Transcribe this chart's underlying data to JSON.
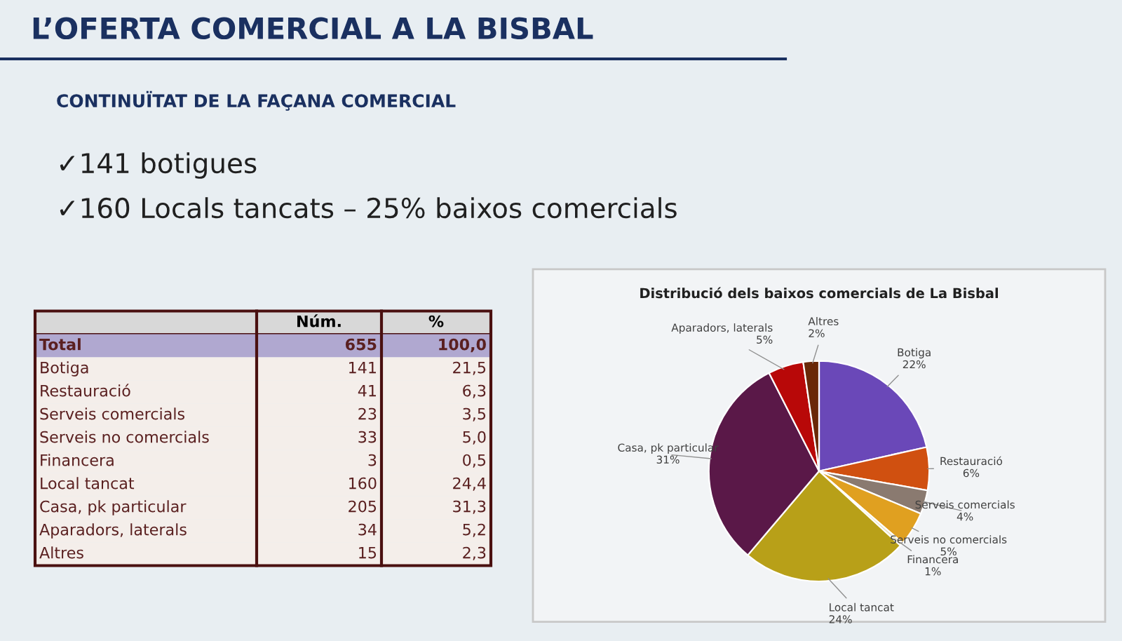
{
  "chart_data": [
    {
      "type": "other",
      "title": "L’OFERTA COMERCIAL A LA BISBAL",
      "subtitle": "CONTINUÏTAT DE LA FAÇANA COMERCIAL",
      "annotations": [
        "✓141 botigues",
        "✓160 Locals tancats – 25% baixos comercials",
        "Núm.",
        "%",
        "Total",
        "655",
        "100,0",
        "Botiga",
        "141",
        "21,5",
        "Restauració",
        "41",
        "6,3",
        "Serveis comercials",
        "23",
        "3,5",
        "Serveis no comercials",
        "33",
        "5,0",
        "Financera",
        "3",
        "0,5",
        "Local tancat",
        "160",
        "24,4",
        "Casa, pk particular",
        "205",
        "31,3",
        "Aparadors, laterals",
        "34",
        "5,2",
        "Altres",
        "15",
        "2,3"
      ]
    },
    {
      "type": "pie",
      "title": "Distribució dels baixos comercials de La Bisbal",
      "categories": [
        "Botiga",
        "Restauració",
        "Serveis comercials",
        "Serveis no comercials",
        "Financera",
        "Local tancat",
        "Casa, pk particular",
        "Aparadors, laterals",
        "Altres"
      ],
      "values": [
        21.5,
        6.3,
        3.5,
        5.0,
        0.5,
        24.4,
        31.3,
        5.2,
        2.3
      ],
      "value_labels": [
        "22%",
        "6%",
        "4%",
        "5%",
        "1%",
        "24%",
        "31%",
        "5%",
        "2%"
      ],
      "colors": [
        "#6a48b8",
        "#d05010",
        "#8a7a70",
        "#e0a020",
        "#e8e0c0",
        "#b8a018",
        "#5a1848",
        "#b80808",
        "#6a2808"
      ]
    }
  ]
}
